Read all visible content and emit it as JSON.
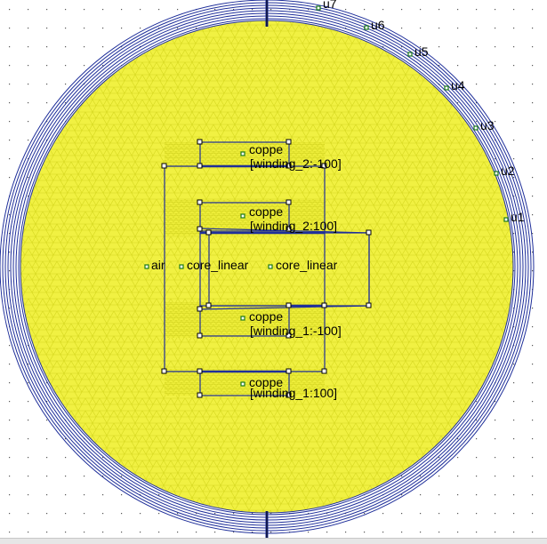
{
  "view": {
    "mesh_color": "#d6d820",
    "mesh_fill": "#f1f142",
    "boundary_color": "#1f2f9a",
    "node_color": "#1a7a1a",
    "grid_dot_color": "#555555"
  },
  "labels": {
    "air": "air",
    "core_left": "core_linear",
    "core_right": "core_linear",
    "copper_1": "coppe",
    "winding_top": "[winding_2:-100]",
    "copper_2": "coppe",
    "winding_2": "[winding_2:100]",
    "copper_3": "coppe",
    "winding_3": "[winding_1:-100]",
    "copper_4": "coppe",
    "winding_bottom": "[winding_1:100]"
  },
  "boundary_labels": [
    "u1",
    "u2",
    "u3",
    "u4",
    "u5",
    "u6",
    "u7"
  ]
}
